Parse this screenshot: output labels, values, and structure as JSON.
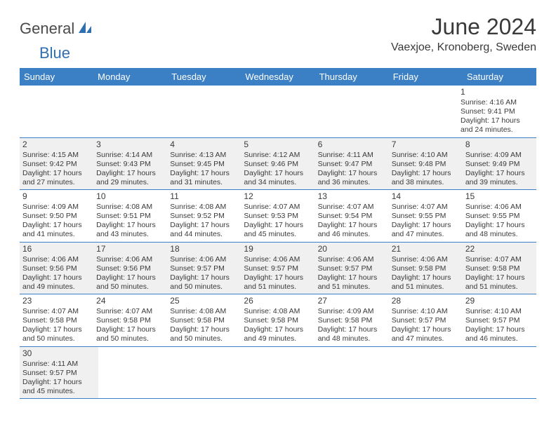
{
  "logo": {
    "part1": "General",
    "part2": "Blue"
  },
  "title": "June 2024",
  "location": "Vaexjoe, Kronoberg, Sweden",
  "colors": {
    "header_bg": "#3b7fc4",
    "header_text": "#ffffff",
    "shaded_bg": "#f0f0f0",
    "text": "#3a3a3a",
    "border": "#3b7fc4"
  },
  "weekdays": [
    "Sunday",
    "Monday",
    "Tuesday",
    "Wednesday",
    "Thursday",
    "Friday",
    "Saturday"
  ],
  "weeks": [
    [
      {
        "empty": true
      },
      {
        "empty": true
      },
      {
        "empty": true
      },
      {
        "empty": true
      },
      {
        "empty": true
      },
      {
        "empty": true
      },
      {
        "day": "1",
        "shaded": false,
        "sunrise": "Sunrise: 4:16 AM",
        "sunset": "Sunset: 9:41 PM",
        "daylight1": "Daylight: 17 hours",
        "daylight2": "and 24 minutes."
      }
    ],
    [
      {
        "day": "2",
        "shaded": true,
        "sunrise": "Sunrise: 4:15 AM",
        "sunset": "Sunset: 9:42 PM",
        "daylight1": "Daylight: 17 hours",
        "daylight2": "and 27 minutes."
      },
      {
        "day": "3",
        "shaded": true,
        "sunrise": "Sunrise: 4:14 AM",
        "sunset": "Sunset: 9:43 PM",
        "daylight1": "Daylight: 17 hours",
        "daylight2": "and 29 minutes."
      },
      {
        "day": "4",
        "shaded": true,
        "sunrise": "Sunrise: 4:13 AM",
        "sunset": "Sunset: 9:45 PM",
        "daylight1": "Daylight: 17 hours",
        "daylight2": "and 31 minutes."
      },
      {
        "day": "5",
        "shaded": true,
        "sunrise": "Sunrise: 4:12 AM",
        "sunset": "Sunset: 9:46 PM",
        "daylight1": "Daylight: 17 hours",
        "daylight2": "and 34 minutes."
      },
      {
        "day": "6",
        "shaded": true,
        "sunrise": "Sunrise: 4:11 AM",
        "sunset": "Sunset: 9:47 PM",
        "daylight1": "Daylight: 17 hours",
        "daylight2": "and 36 minutes."
      },
      {
        "day": "7",
        "shaded": true,
        "sunrise": "Sunrise: 4:10 AM",
        "sunset": "Sunset: 9:48 PM",
        "daylight1": "Daylight: 17 hours",
        "daylight2": "and 38 minutes."
      },
      {
        "day": "8",
        "shaded": true,
        "sunrise": "Sunrise: 4:09 AM",
        "sunset": "Sunset: 9:49 PM",
        "daylight1": "Daylight: 17 hours",
        "daylight2": "and 39 minutes."
      }
    ],
    [
      {
        "day": "9",
        "shaded": false,
        "sunrise": "Sunrise: 4:09 AM",
        "sunset": "Sunset: 9:50 PM",
        "daylight1": "Daylight: 17 hours",
        "daylight2": "and 41 minutes."
      },
      {
        "day": "10",
        "shaded": false,
        "sunrise": "Sunrise: 4:08 AM",
        "sunset": "Sunset: 9:51 PM",
        "daylight1": "Daylight: 17 hours",
        "daylight2": "and 43 minutes."
      },
      {
        "day": "11",
        "shaded": false,
        "sunrise": "Sunrise: 4:08 AM",
        "sunset": "Sunset: 9:52 PM",
        "daylight1": "Daylight: 17 hours",
        "daylight2": "and 44 minutes."
      },
      {
        "day": "12",
        "shaded": false,
        "sunrise": "Sunrise: 4:07 AM",
        "sunset": "Sunset: 9:53 PM",
        "daylight1": "Daylight: 17 hours",
        "daylight2": "and 45 minutes."
      },
      {
        "day": "13",
        "shaded": false,
        "sunrise": "Sunrise: 4:07 AM",
        "sunset": "Sunset: 9:54 PM",
        "daylight1": "Daylight: 17 hours",
        "daylight2": "and 46 minutes."
      },
      {
        "day": "14",
        "shaded": false,
        "sunrise": "Sunrise: 4:07 AM",
        "sunset": "Sunset: 9:55 PM",
        "daylight1": "Daylight: 17 hours",
        "daylight2": "and 47 minutes."
      },
      {
        "day": "15",
        "shaded": false,
        "sunrise": "Sunrise: 4:06 AM",
        "sunset": "Sunset: 9:55 PM",
        "daylight1": "Daylight: 17 hours",
        "daylight2": "and 48 minutes."
      }
    ],
    [
      {
        "day": "16",
        "shaded": true,
        "sunrise": "Sunrise: 4:06 AM",
        "sunset": "Sunset: 9:56 PM",
        "daylight1": "Daylight: 17 hours",
        "daylight2": "and 49 minutes."
      },
      {
        "day": "17",
        "shaded": true,
        "sunrise": "Sunrise: 4:06 AM",
        "sunset": "Sunset: 9:56 PM",
        "daylight1": "Daylight: 17 hours",
        "daylight2": "and 50 minutes."
      },
      {
        "day": "18",
        "shaded": true,
        "sunrise": "Sunrise: 4:06 AM",
        "sunset": "Sunset: 9:57 PM",
        "daylight1": "Daylight: 17 hours",
        "daylight2": "and 50 minutes."
      },
      {
        "day": "19",
        "shaded": true,
        "sunrise": "Sunrise: 4:06 AM",
        "sunset": "Sunset: 9:57 PM",
        "daylight1": "Daylight: 17 hours",
        "daylight2": "and 51 minutes."
      },
      {
        "day": "20",
        "shaded": true,
        "sunrise": "Sunrise: 4:06 AM",
        "sunset": "Sunset: 9:57 PM",
        "daylight1": "Daylight: 17 hours",
        "daylight2": "and 51 minutes."
      },
      {
        "day": "21",
        "shaded": true,
        "sunrise": "Sunrise: 4:06 AM",
        "sunset": "Sunset: 9:58 PM",
        "daylight1": "Daylight: 17 hours",
        "daylight2": "and 51 minutes."
      },
      {
        "day": "22",
        "shaded": true,
        "sunrise": "Sunrise: 4:07 AM",
        "sunset": "Sunset: 9:58 PM",
        "daylight1": "Daylight: 17 hours",
        "daylight2": "and 51 minutes."
      }
    ],
    [
      {
        "day": "23",
        "shaded": false,
        "sunrise": "Sunrise: 4:07 AM",
        "sunset": "Sunset: 9:58 PM",
        "daylight1": "Daylight: 17 hours",
        "daylight2": "and 50 minutes."
      },
      {
        "day": "24",
        "shaded": false,
        "sunrise": "Sunrise: 4:07 AM",
        "sunset": "Sunset: 9:58 PM",
        "daylight1": "Daylight: 17 hours",
        "daylight2": "and 50 minutes."
      },
      {
        "day": "25",
        "shaded": false,
        "sunrise": "Sunrise: 4:08 AM",
        "sunset": "Sunset: 9:58 PM",
        "daylight1": "Daylight: 17 hours",
        "daylight2": "and 50 minutes."
      },
      {
        "day": "26",
        "shaded": false,
        "sunrise": "Sunrise: 4:08 AM",
        "sunset": "Sunset: 9:58 PM",
        "daylight1": "Daylight: 17 hours",
        "daylight2": "and 49 minutes."
      },
      {
        "day": "27",
        "shaded": false,
        "sunrise": "Sunrise: 4:09 AM",
        "sunset": "Sunset: 9:58 PM",
        "daylight1": "Daylight: 17 hours",
        "daylight2": "and 48 minutes."
      },
      {
        "day": "28",
        "shaded": false,
        "sunrise": "Sunrise: 4:10 AM",
        "sunset": "Sunset: 9:57 PM",
        "daylight1": "Daylight: 17 hours",
        "daylight2": "and 47 minutes."
      },
      {
        "day": "29",
        "shaded": false,
        "sunrise": "Sunrise: 4:10 AM",
        "sunset": "Sunset: 9:57 PM",
        "daylight1": "Daylight: 17 hours",
        "daylight2": "and 46 minutes."
      }
    ],
    [
      {
        "day": "30",
        "shaded": true,
        "sunrise": "Sunrise: 4:11 AM",
        "sunset": "Sunset: 9:57 PM",
        "daylight1": "Daylight: 17 hours",
        "daylight2": "and 45 minutes."
      },
      {
        "empty": true
      },
      {
        "empty": true
      },
      {
        "empty": true
      },
      {
        "empty": true
      },
      {
        "empty": true
      },
      {
        "empty": true
      }
    ]
  ]
}
